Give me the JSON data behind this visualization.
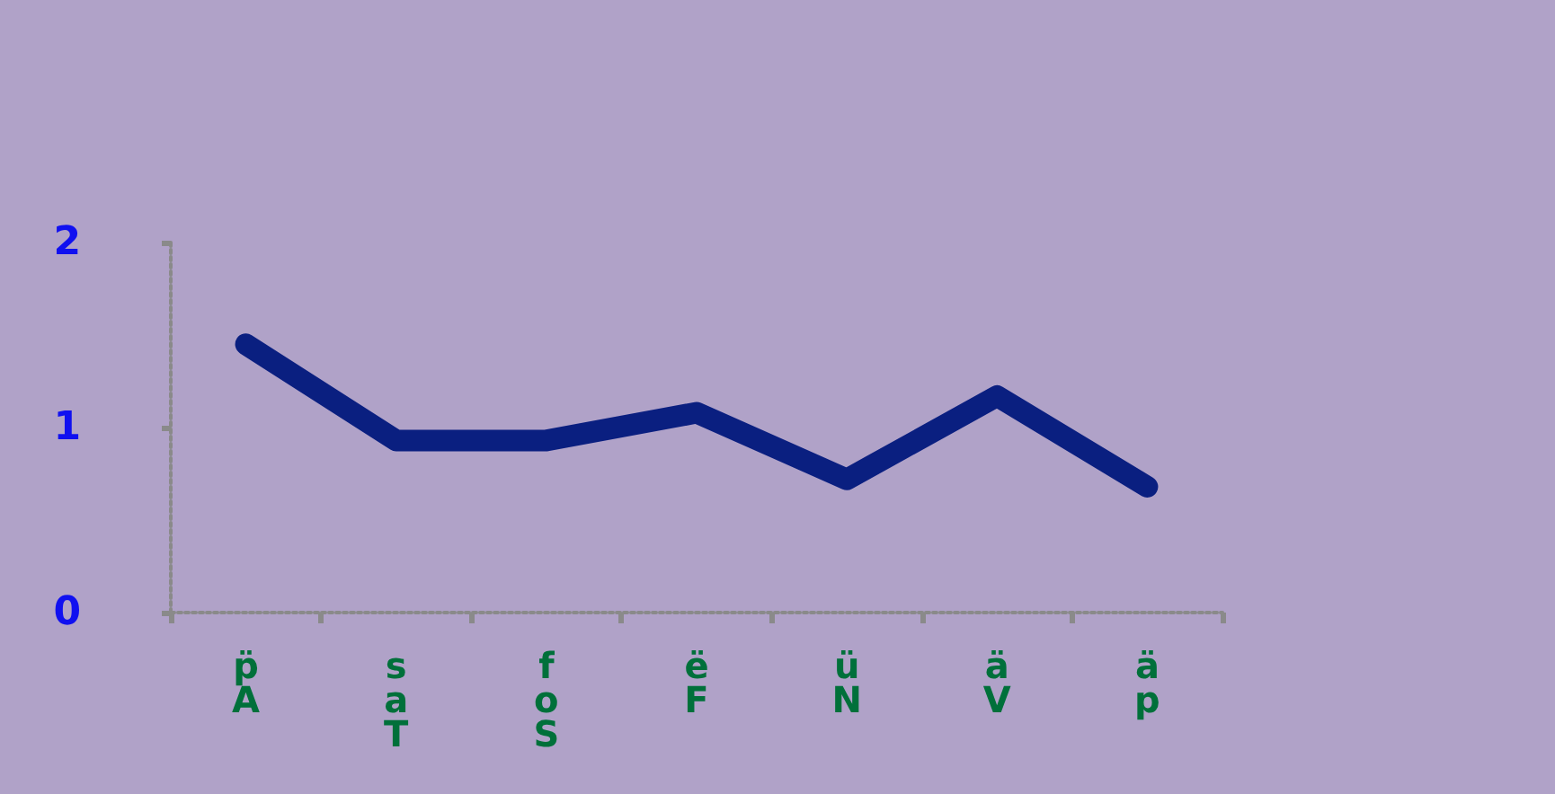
{
  "chart_data": {
    "type": "line",
    "categories": [
      "p̈\nA",
      "s\na\nT",
      "f\no\nS",
      "ë\nF",
      "ü\nN",
      "ä\nV",
      "ä\np"
    ],
    "series": [
      {
        "color": "#0a1f80",
        "values": [
          1.45,
          0.93,
          0.93,
          1.08,
          0.72,
          1.17,
          0.68
        ]
      }
    ],
    "ylim": [
      0,
      2
    ],
    "yticks": [
      0,
      1,
      2
    ],
    "grid": false,
    "line_style": "solid"
  }
}
